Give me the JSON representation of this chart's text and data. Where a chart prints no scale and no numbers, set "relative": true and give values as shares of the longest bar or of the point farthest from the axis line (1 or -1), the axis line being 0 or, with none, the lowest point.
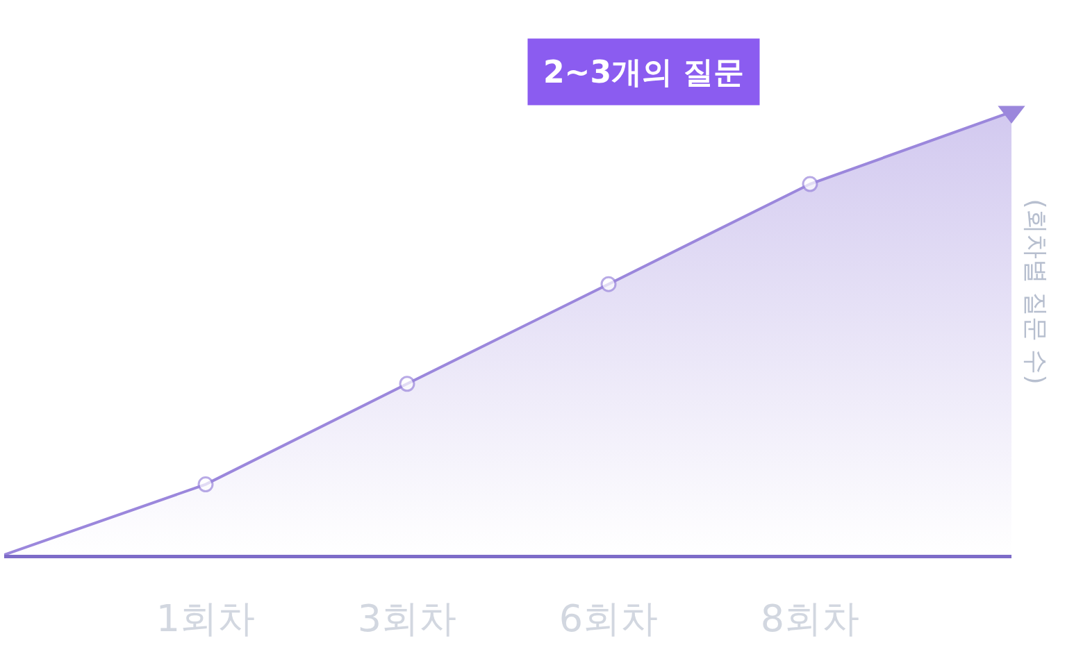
{
  "chart_data": {
    "type": "area",
    "relative": true,
    "categories": [
      null,
      "1회차",
      "3회차",
      "6회차",
      "8회차",
      null
    ],
    "series": [
      {
        "color": "#9b87dc",
        "values": [
          0,
          0.159,
          0.386,
          0.611,
          0.837,
          1
        ]
      }
    ],
    "ylabel": "(회차별 질문 수)",
    "annotations": [
      "2~3개의 질문"
    ],
    "marker": "circle",
    "legend": false
  }
}
